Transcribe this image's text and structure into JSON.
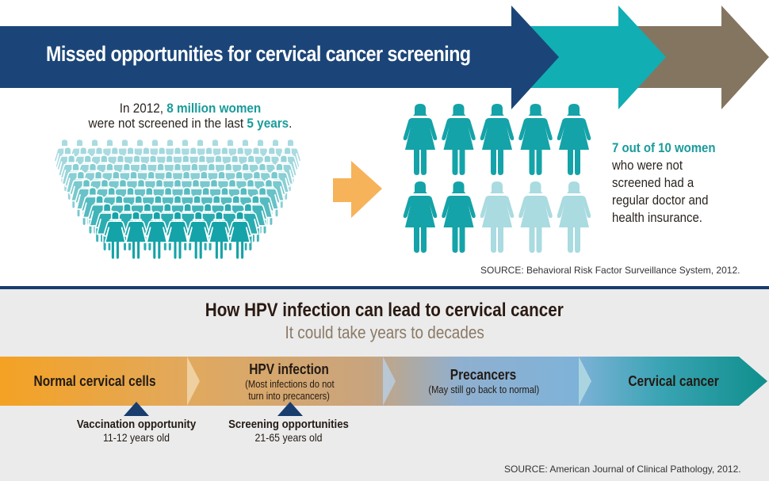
{
  "colors": {
    "navy": "#1b4578",
    "teal_arrow": "#11aeb3",
    "brown_arrow": "#847560",
    "orange_arrow": "#f6b35a",
    "figure_dark": "#14a3a8",
    "figure_light": "#a9dbe0",
    "divider": "#183d6e",
    "lower_bg": "#ebebeb",
    "marker": "#183d6e"
  },
  "header": {
    "title": "Missed opportunities for cervical cancer screening"
  },
  "intro": {
    "line1_prefix": "In 2012, ",
    "line1_highlight": "8 million women",
    "line2_prefix": "were not screened in the last ",
    "line2_highlight": "5 years",
    "line2_suffix": "."
  },
  "crowd": {
    "rows_back_to_front": [
      16,
      15,
      14,
      13,
      12,
      11,
      10,
      9,
      8,
      7
    ]
  },
  "sample": {
    "total": 10,
    "highlighted": 7,
    "per_row": 5
  },
  "stat": {
    "highlight": "7 out of 10 women",
    "body": "who were not screened had a regular doctor and health insurance.",
    "lines": [
      "who were not",
      "screened had a",
      "regular doctor and",
      "health insurance."
    ]
  },
  "source_top": "SOURCE: Behavioral Risk Factor Surveillance System, 2012.",
  "lower": {
    "title": "How HPV infection can lead to cervical cancer",
    "subtitle": "It could take years to decades",
    "stages": [
      {
        "title": "Normal cervical cells",
        "desc": ""
      },
      {
        "title": "HPV infection",
        "desc": "(Most infections do not",
        "desc2": "turn into precancers)"
      },
      {
        "title": "Precancers",
        "desc": "(May still go back to normal)"
      },
      {
        "title": "Cervical cancer",
        "desc": ""
      }
    ],
    "opportunities": [
      {
        "title": "Vaccination opportunity",
        "desc": "11-12 years old"
      },
      {
        "title": "Screening opportunities",
        "desc": "21-65 years old"
      }
    ],
    "source": "SOURCE: American Journal of Clinical Pathology, 2012."
  }
}
